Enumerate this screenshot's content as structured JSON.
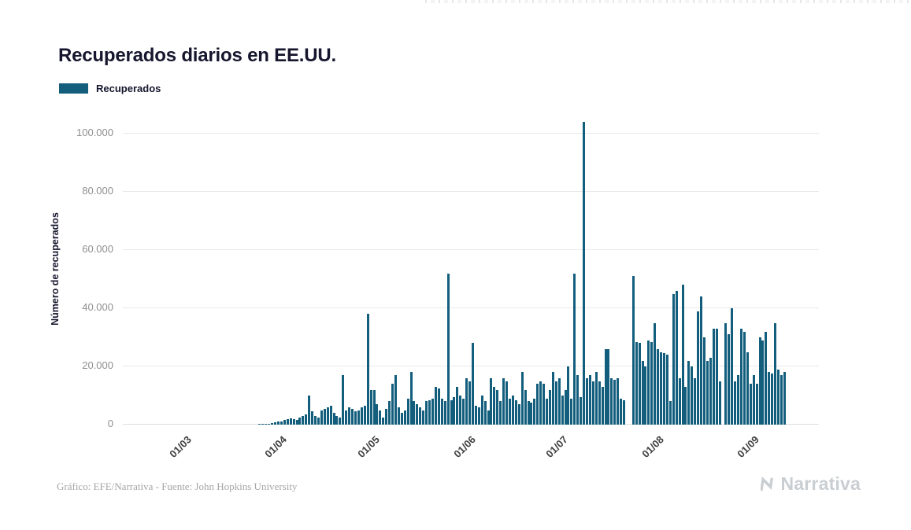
{
  "page": {
    "title": "Recuperados diarios en EE.UU.",
    "legend": {
      "label": "Recuperados"
    },
    "y_axis_title": "Número de recuperados",
    "footer": {
      "credit": "Gráfico: EFE/Narrativa - Fuente: John Hopkins University",
      "brand": "Narrativa"
    }
  },
  "chart_data": {
    "type": "bar",
    "title": "Recuperados diarios en EE.UU.",
    "xlabel": "",
    "ylabel": "Número de recuperados",
    "legend_entries": [
      "Recuperados"
    ],
    "legend_position": "top-left",
    "grid": "horizontal",
    "bar_color": "#135e7d",
    "ylim": [
      0,
      105000
    ],
    "yticks": [
      0,
      20000,
      40000,
      60000,
      80000,
      100000
    ],
    "ytick_labels": [
      "0",
      "20.000",
      "40.000",
      "60.000",
      "80.000",
      "100.000"
    ],
    "xtick_labels": [
      "01/03",
      "01/04",
      "01/05",
      "01/06",
      "01/07",
      "01/08",
      "01/09"
    ],
    "months": [
      {
        "tick": "",
        "values": [
          0,
          0,
          0,
          0,
          0,
          0,
          0,
          0,
          0,
          0,
          0,
          0,
          0,
          0,
          0,
          0,
          0,
          0,
          0,
          0
        ]
      },
      {
        "tick": "01/03",
        "values": [
          0,
          0,
          0,
          0,
          0,
          0,
          0,
          0,
          0,
          0,
          0,
          0,
          0,
          0,
          0,
          0,
          0,
          0,
          0,
          0,
          0,
          0,
          0,
          0,
          100,
          200,
          300,
          400,
          600,
          800,
          1000
        ]
      },
      {
        "tick": "01/04",
        "values": [
          1200,
          1500,
          1800,
          2200,
          2000,
          1500,
          2500,
          3000,
          3500,
          10000,
          4500,
          3000,
          2500,
          5000,
          5500,
          6000,
          6500,
          4000,
          3000,
          2500,
          17000,
          5000,
          6000,
          5500,
          4500,
          5000,
          6000,
          6500,
          38000,
          12000
        ]
      },
      {
        "tick": "01/05",
        "values": [
          12000,
          7000,
          5000,
          2500,
          5500,
          8000,
          14000,
          17000,
          6000,
          4000,
          5000,
          9000,
          18000,
          8000,
          7000,
          6000,
          5000,
          8000,
          8500,
          9000,
          13000,
          12500,
          9000,
          8000,
          52000,
          8500,
          9500,
          13000,
          10000,
          9000,
          16000
        ]
      },
      {
        "tick": "01/06",
        "values": [
          15000,
          28000,
          6500,
          6000,
          10000,
          8000,
          5000,
          16000,
          13000,
          12000,
          8000,
          16000,
          15000,
          9000,
          10000,
          8500,
          7000,
          18000,
          12000,
          8000,
          7500,
          9000,
          14000,
          15000,
          14000,
          9000,
          12000,
          18000,
          15000,
          16000
        ]
      },
      {
        "tick": "01/07",
        "values": [
          10000,
          12000,
          20000,
          9000,
          52000,
          17000,
          9500,
          104000,
          16000,
          17000,
          15000,
          18000,
          15000,
          13000,
          26000,
          26000,
          16000,
          15500,
          16000,
          9000,
          8500,
          0,
          0,
          51000,
          28500,
          28000,
          22000,
          20000,
          29000,
          28500,
          35000
        ]
      },
      {
        "tick": "01/08",
        "values": [
          26000,
          25000,
          24500,
          24000,
          8000,
          45000,
          46000,
          16000,
          48000,
          13000,
          22000,
          20000,
          16000,
          39000,
          44000,
          30000,
          22000,
          23000,
          33000,
          33000,
          15000,
          0,
          35000,
          31000,
          40000,
          15000,
          17000,
          33000,
          32000,
          25000,
          14000
        ]
      },
      {
        "tick": "01/09",
        "values": [
          17000,
          14000,
          30000,
          29000,
          32000,
          18000,
          17500,
          35000,
          19000,
          17000,
          18000
        ]
      }
    ]
  }
}
